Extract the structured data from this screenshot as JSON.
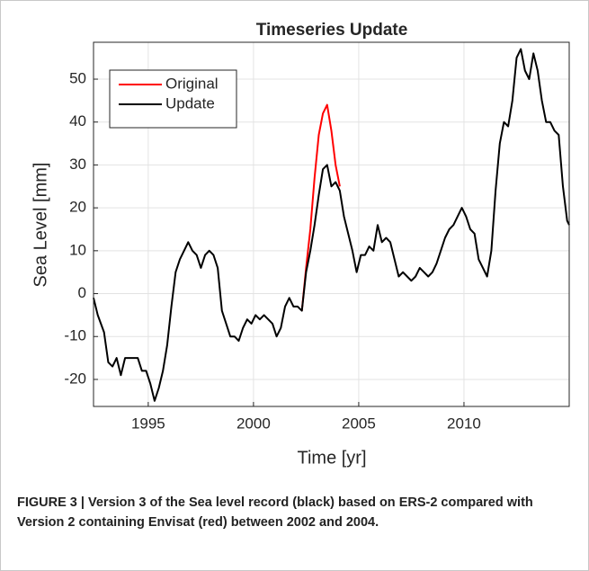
{
  "chart_data": {
    "type": "line",
    "title": "Timeseries Update",
    "x_label": "Time [yr]",
    "y_label": "Sea Level [mm]",
    "xlim": [
      1992.4,
      2015.0
    ],
    "ylim": [
      -26.3,
      58.6
    ],
    "xticks": [
      1995,
      2000,
      2005,
      2010
    ],
    "yticks": [
      -20,
      -10,
      0,
      10,
      20,
      30,
      40,
      50
    ],
    "grid": true,
    "legend": "upper left",
    "series": [
      {
        "name": "Original",
        "color": "#ff0000",
        "x": [
          2002.3,
          2002.5,
          2002.7,
          2002.9,
          2003.1,
          2003.3,
          2003.5,
          2003.7,
          2003.9,
          2004.1
        ],
        "values": [
          -4,
          6,
          15,
          27,
          37,
          42,
          44,
          38,
          30,
          25
        ]
      },
      {
        "name": "Update",
        "color": "#000000",
        "x": [
          1992.4,
          1992.6,
          1992.9,
          1993.1,
          1993.3,
          1993.5,
          1993.7,
          1993.9,
          1994.2,
          1994.5,
          1994.7,
          1994.9,
          1995.1,
          1995.3,
          1995.5,
          1995.7,
          1995.9,
          1996.1,
          1996.3,
          1996.5,
          1996.7,
          1996.9,
          1997.1,
          1997.3,
          1997.5,
          1997.7,
          1997.9,
          1998.1,
          1998.3,
          1998.5,
          1998.7,
          1998.9,
          1999.1,
          1999.3,
          1999.5,
          1999.7,
          1999.9,
          2000.1,
          2000.3,
          2000.5,
          2000.7,
          2000.9,
          2001.1,
          2001.3,
          2001.5,
          2001.7,
          2001.9,
          2002.1,
          2002.3,
          2002.5,
          2002.7,
          2002.9,
          2003.1,
          2003.3,
          2003.5,
          2003.7,
          2003.9,
          2004.1,
          2004.3,
          2004.5,
          2004.7,
          2004.9,
          2005.1,
          2005.3,
          2005.5,
          2005.7,
          2005.9,
          2006.1,
          2006.3,
          2006.5,
          2006.7,
          2006.9,
          2007.1,
          2007.3,
          2007.5,
          2007.7,
          2007.9,
          2008.1,
          2008.3,
          2008.5,
          2008.7,
          2008.9,
          2009.1,
          2009.3,
          2009.5,
          2009.7,
          2009.9,
          2010.1,
          2010.3,
          2010.5,
          2010.7,
          2010.9,
          2011.1,
          2011.3,
          2011.5,
          2011.7,
          2011.9,
          2012.1,
          2012.3,
          2012.5,
          2012.7,
          2012.9,
          2013.1,
          2013.3,
          2013.5,
          2013.7,
          2013.9,
          2014.1,
          2014.3,
          2014.5,
          2014.7,
          2014.9,
          2015.0
        ],
        "values": [
          -1,
          -5,
          -9,
          -16,
          -17,
          -15,
          -19,
          -15,
          -15,
          -15,
          -18,
          -18,
          -21,
          -25,
          -22,
          -18,
          -12,
          -3,
          5,
          8,
          10,
          12,
          10,
          9,
          6,
          9,
          10,
          9,
          6,
          -4,
          -7,
          -10,
          -10,
          -11,
          -8,
          -6,
          -7,
          -5,
          -6,
          -5,
          -6,
          -7,
          -10,
          -8,
          -3,
          -1,
          -3,
          -3,
          -4,
          5,
          10,
          16,
          23,
          29,
          30,
          25,
          26,
          24,
          18,
          14,
          10,
          5,
          9,
          9,
          11,
          10,
          16,
          12,
          13,
          12,
          8,
          4,
          5,
          4,
          3,
          4,
          6,
          5,
          4,
          5,
          7,
          10,
          13,
          15,
          16,
          18,
          20,
          18,
          15,
          14,
          8,
          6,
          4,
          10,
          24,
          35,
          40,
          39,
          45,
          55,
          57,
          52,
          50,
          56,
          52,
          45,
          40,
          40,
          38,
          37,
          25,
          17,
          16
        ]
      }
    ]
  },
  "caption": "FIGURE 3 | Version 3 of the Sea level record (black) based on ERS-2 compared with Version 2 containing Envisat (red) between 2002 and 2004."
}
